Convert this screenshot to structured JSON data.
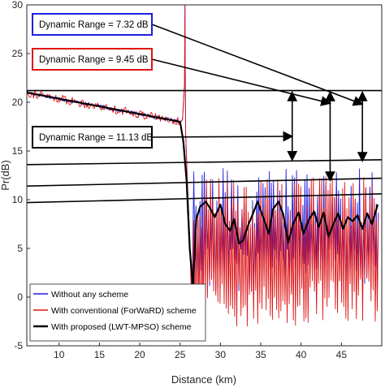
{
  "chart_data": {
    "type": "line",
    "xlabel": "Distance (km)",
    "ylabel": "Pr(dB)",
    "xlim": [
      6,
      50
    ],
    "ylim": [
      -5,
      30
    ],
    "xticks": [
      "10",
      "15",
      "20",
      "25",
      "30",
      "35",
      "40",
      "45"
    ],
    "yticks": [
      "-5",
      "0",
      "5",
      "10",
      "15",
      "20",
      "25",
      "30"
    ],
    "grid": false,
    "legend_position": "bottom-left",
    "colors": {
      "blue": "#1f1fe0",
      "red": "#e01515",
      "black": "#000000"
    },
    "series": [
      {
        "name": "Without any scheme",
        "color": "#1f1fe0",
        "profile": {
          "start_db": 21.0,
          "end_db": 18.0,
          "spike_km": 25.6,
          "noise_max_db": 13.2,
          "noise_min_db": 0.0
        }
      },
      {
        "name": "With conventional (ForWaRD) scheme",
        "color": "#e01515",
        "profile": {
          "start_db": 21.0,
          "end_db": 18.0,
          "spike_km": 25.6,
          "noise_max_db": 12.5,
          "noise_min_db": -3.0
        }
      },
      {
        "name": "With proposed (LWT-MPSO) scheme",
        "color": "#000000",
        "x": [
          26.6,
          27.0,
          27.5,
          28.2,
          28.8,
          29.3,
          30.0,
          30.6,
          31.2,
          31.7,
          32.3,
          32.8,
          33.5,
          34.0,
          34.6,
          35.3,
          36.0,
          36.5,
          37.2,
          37.8,
          38.4,
          39.0,
          39.7,
          40.3,
          41.0,
          41.6,
          42.2,
          42.8,
          43.4,
          44.0,
          44.6,
          45.2,
          45.8,
          46.4,
          47.0,
          47.6,
          48.2,
          48.8,
          49.5
        ],
        "y": [
          1.0,
          8.0,
          9.3,
          9.8,
          9.0,
          8.2,
          9.5,
          7.5,
          6.8,
          8.0,
          5.5,
          5.8,
          7.5,
          8.5,
          9.8,
          8.2,
          6.5,
          9.0,
          9.8,
          8.5,
          5.6,
          7.5,
          8.7,
          6.5,
          8.0,
          8.8,
          7.2,
          8.7,
          6.2,
          7.5,
          8.6,
          7.0,
          8.2,
          7.8,
          8.4,
          7.0,
          8.6,
          7.5,
          9.5
        ]
      }
    ],
    "annotations": [
      {
        "text": "Dynamic Range = 7.32 dB",
        "box_color": "#1f1fe0"
      },
      {
        "text": "Dynamic Range = 9.45 dB",
        "box_color": "#e01515"
      },
      {
        "text": "Dynamic Range = 11.13 dB",
        "box_color": "#000000"
      }
    ]
  }
}
